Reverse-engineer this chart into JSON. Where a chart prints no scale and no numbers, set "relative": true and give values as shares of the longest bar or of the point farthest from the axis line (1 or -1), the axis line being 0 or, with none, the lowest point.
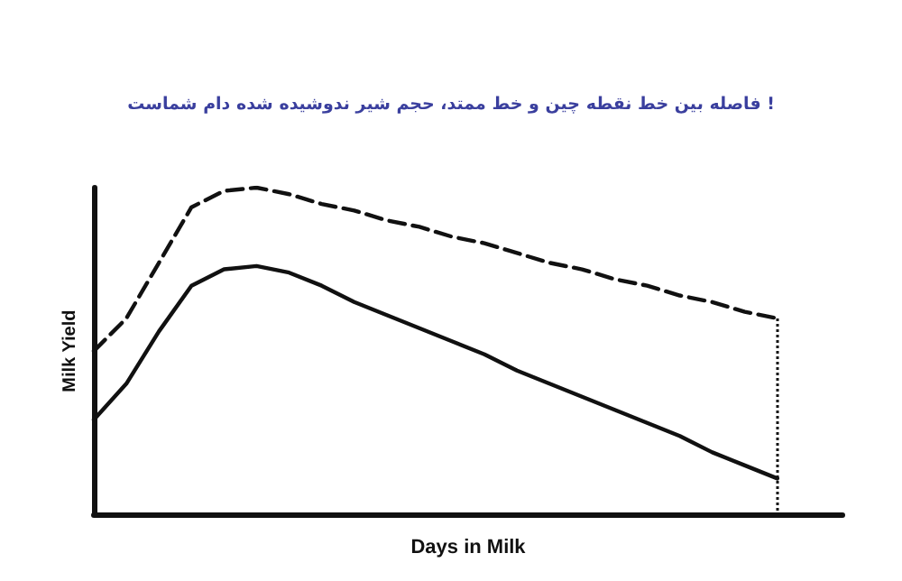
{
  "chart_data": {
    "type": "line",
    "title": "فاصله بین خط نقطه چین و خط ممتد، حجم شیر ندوشیده شده دام شماست !",
    "xlabel": "Days in Milk",
    "ylabel": "Milk Yield",
    "relative": true,
    "grid": false,
    "marker": "none",
    "categories": [
      null,
      null,
      null,
      null,
      null,
      null,
      null,
      null,
      null,
      null,
      null,
      null,
      null,
      null,
      null,
      null,
      null,
      null,
      null,
      null,
      null,
      null,
      null,
      null
    ],
    "series": [
      {
        "color": "#111111",
        "line_style": "dashed",
        "values": [
          0.5,
          0.6,
          0.77,
          0.94,
          0.99,
          1.0,
          0.98,
          0.95,
          0.93,
          0.9,
          0.88,
          0.85,
          0.83,
          0.8,
          0.77,
          0.75,
          0.72,
          0.7,
          0.67,
          0.65,
          0.62,
          0.6,
          null,
          null
        ]
      },
      {
        "color": "#111111",
        "line_style": "solid",
        "values": [
          0.29,
          0.4,
          0.56,
          0.7,
          0.75,
          0.76,
          0.74,
          0.7,
          0.65,
          0.61,
          0.57,
          0.53,
          0.49,
          0.44,
          0.4,
          0.36,
          0.32,
          0.28,
          0.24,
          0.19,
          0.15,
          0.11,
          null,
          null
        ]
      }
    ]
  }
}
